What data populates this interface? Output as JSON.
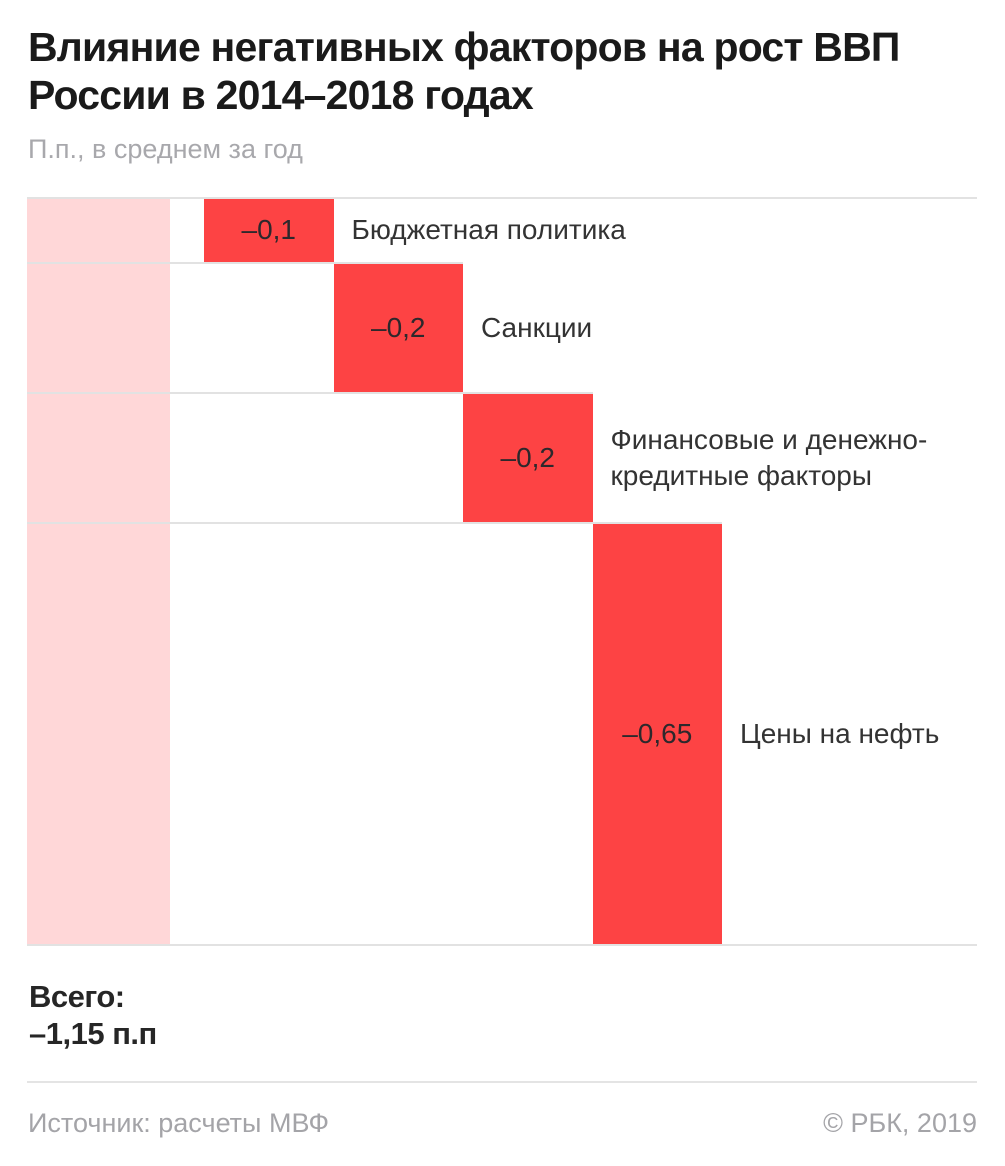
{
  "header": {
    "title": "Влияние негативных факторов на рост ВВП России в 2014–2018 годах",
    "subtitle": "П.п., в среднем за год"
  },
  "chart_data": {
    "type": "bar",
    "subtype": "waterfall",
    "title": "Влияние негативных факторов на рост ВВП России в 2014–2018 годах",
    "unit_note": "П.п., в среднем за год",
    "categories": [
      "Бюджетная политика",
      "Санкции",
      "Финансовые и денежно-кредитные факторы",
      "Цены на нефть"
    ],
    "values": [
      -0.1,
      -0.2,
      -0.2,
      -0.65
    ],
    "value_labels": [
      "–0,1",
      "–0,2",
      "–0,2",
      "–0,65"
    ],
    "total": {
      "label": "Всего:",
      "value": -1.15,
      "value_label": "–1,15 п.п"
    },
    "colors": {
      "bar": "#fd4344",
      "total_band": "#ffd7d8",
      "grid": "#e2e2e2"
    },
    "legend": "none",
    "grid": "horizontal step connectors",
    "orientation": "descending waterfall, total band on left"
  },
  "footer": {
    "source": "Источник: расчеты МВФ",
    "copyright": "© РБК, 2019"
  }
}
